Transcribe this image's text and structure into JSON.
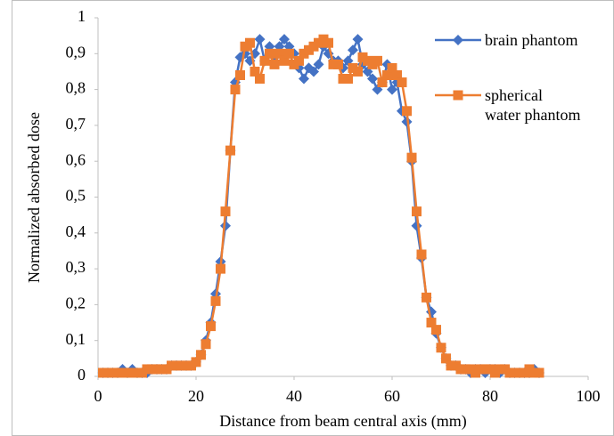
{
  "chart_data": {
    "type": "line",
    "x_label": "Distance from beam central axis (mm)",
    "y_label": "Normalized absorbed dose",
    "x": [
      1,
      2,
      3,
      4,
      5,
      6,
      7,
      8,
      9,
      10,
      11,
      12,
      13,
      14,
      15,
      16,
      17,
      18,
      19,
      20,
      21,
      22,
      23,
      24,
      25,
      26,
      27,
      28,
      29,
      30,
      31,
      32,
      33,
      34,
      35,
      36,
      37,
      38,
      39,
      40,
      41,
      42,
      43,
      44,
      45,
      46,
      47,
      48,
      49,
      50,
      51,
      52,
      53,
      54,
      55,
      56,
      57,
      58,
      59,
      60,
      61,
      62,
      63,
      64,
      65,
      66,
      67,
      68,
      69,
      70,
      71,
      72,
      73,
      74,
      75,
      76,
      77,
      78,
      79,
      80,
      81,
      82,
      83,
      84,
      85,
      86,
      87,
      88,
      89,
      90
    ],
    "series": [
      {
        "name": "brain phantom",
        "color": "#4472c4",
        "marker": "diamond",
        "values": [
          0.01,
          0.01,
          0.01,
          0.01,
          0.02,
          0.01,
          0.02,
          0.01,
          0.01,
          0.01,
          0.02,
          0.02,
          0.02,
          0.02,
          0.03,
          0.03,
          0.03,
          0.03,
          0.03,
          0.04,
          0.06,
          0.1,
          0.15,
          0.23,
          0.32,
          0.42,
          0.63,
          0.82,
          0.89,
          0.9,
          0.88,
          0.9,
          0.94,
          0.88,
          0.92,
          0.89,
          0.92,
          0.94,
          0.92,
          0.9,
          0.86,
          0.83,
          0.86,
          0.85,
          0.87,
          0.92,
          0.9,
          0.88,
          0.88,
          0.86,
          0.88,
          0.91,
          0.94,
          0.87,
          0.85,
          0.83,
          0.8,
          0.82,
          0.87,
          0.8,
          0.82,
          0.74,
          0.71,
          0.6,
          0.42,
          0.33,
          0.22,
          0.18,
          0.12,
          0.08,
          0.05,
          0.03,
          0.03,
          0.02,
          0.02,
          0.01,
          0.02,
          0.02,
          0.01,
          0.02,
          0.02,
          0.01,
          0.02,
          0.01,
          0.01,
          0.01,
          0.01,
          0.01,
          0.02,
          0.01
        ]
      },
      {
        "name": "spherical water phantom",
        "color": "#ed7d31",
        "marker": "square",
        "values": [
          0.01,
          0.01,
          0.01,
          0.01,
          0.01,
          0.01,
          0.01,
          0.01,
          0.01,
          0.02,
          0.02,
          0.02,
          0.02,
          0.02,
          0.03,
          0.03,
          0.03,
          0.03,
          0.03,
          0.04,
          0.06,
          0.09,
          0.14,
          0.21,
          0.3,
          0.46,
          0.63,
          0.8,
          0.84,
          0.92,
          0.93,
          0.85,
          0.83,
          0.88,
          0.9,
          0.87,
          0.9,
          0.88,
          0.9,
          0.87,
          0.88,
          0.9,
          0.91,
          0.92,
          0.93,
          0.94,
          0.93,
          0.87,
          0.87,
          0.83,
          0.83,
          0.86,
          0.85,
          0.89,
          0.88,
          0.87,
          0.88,
          0.82,
          0.84,
          0.86,
          0.84,
          0.82,
          0.74,
          0.61,
          0.46,
          0.34,
          0.22,
          0.15,
          0.13,
          0.08,
          0.05,
          0.03,
          0.03,
          0.02,
          0.02,
          0.02,
          0.01,
          0.02,
          0.02,
          0.02,
          0.01,
          0.02,
          0.02,
          0.01,
          0.01,
          0.01,
          0.01,
          0.02,
          0.01,
          0.01
        ]
      }
    ],
    "xlim": [
      0,
      100
    ],
    "xticks": [
      0,
      20,
      40,
      60,
      80,
      100
    ],
    "ylim": [
      0,
      1
    ],
    "yticks": [
      0,
      {
        "value": 0.1,
        "label": "0,1"
      },
      {
        "value": 0.2,
        "label": "0,2"
      },
      {
        "value": 0.3,
        "label": "0,3"
      },
      {
        "value": 0.4,
        "label": "0,4"
      },
      {
        "value": 0.5,
        "label": "0,5"
      },
      {
        "value": 0.6,
        "label": "0,6"
      },
      {
        "value": 0.7,
        "label": "0,7"
      },
      {
        "value": 0.8,
        "label": "0,8"
      },
      {
        "value": 0.9,
        "label": "0,9"
      },
      1
    ],
    "grid": false,
    "legend": "top-right"
  }
}
